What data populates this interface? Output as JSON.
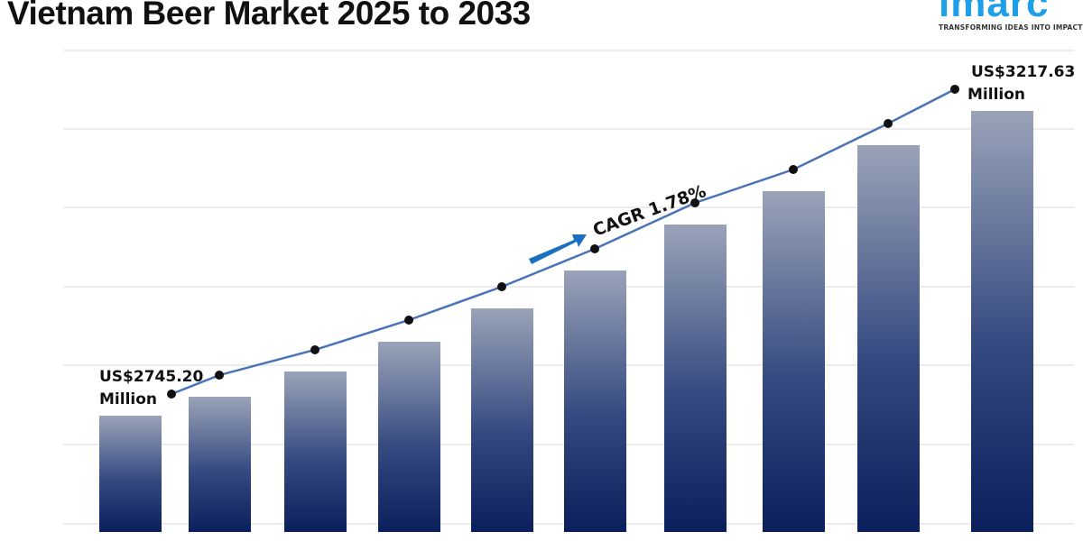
{
  "title": "Vietnam Beer Market 2025 to 2033",
  "logo": {
    "word": "imarc",
    "tagline": "TRANSFORMING IDEAS INTO IMPACT",
    "color": "#1ea0e8"
  },
  "chart_data": {
    "type": "bar",
    "title": "Vietnam Beer Market 2025 to 2033",
    "values": [
      2745.2,
      2774.5,
      2813.7,
      2859.8,
      2911.5,
      2970.2,
      3041.5,
      3093.2,
      3164.5,
      3217.63
    ],
    "overlay_line": true,
    "unit": "US$ Million",
    "grid": true,
    "labels": {
      "first": {
        "line1": "US$2745.20",
        "line2": "Million"
      },
      "last": {
        "line1": "US$3217.63",
        "line2": "Million"
      },
      "cagr": "CAGR 1.78%"
    },
    "colors": {
      "bar_top": "#9aa3b8",
      "bar_bottom": "#0a1f5c",
      "line": "#4a72b8",
      "dot": "#111111",
      "arrow": "#1a6fc0"
    }
  }
}
